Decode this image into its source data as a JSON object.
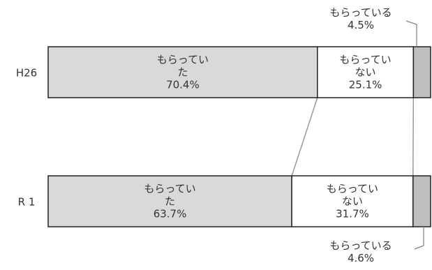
{
  "chart_data": {
    "type": "bar",
    "stacked": true,
    "normalized": true,
    "orientation": "horizontal",
    "categories": [
      "H26",
      "R 1"
    ],
    "series": [
      {
        "name": "もらってい\nた",
        "values": [
          70.4,
          63.7
        ],
        "color": "#d9d9d9"
      },
      {
        "name": "もらってい\nない",
        "values": [
          25.1,
          31.7
        ],
        "color": "#ffffff"
      },
      {
        "name": "もらっている",
        "values": [
          4.5,
          4.6
        ],
        "color": "#bfbfbf"
      }
    ],
    "data_labels": [
      [
        "もらってい\nた\n70.4%",
        "もらってい\nない\n25.1%",
        "もらっている\n4.5%"
      ],
      [
        "もらってい\nた\n63.7%",
        "もらってい\nない\n31.7%",
        "もらっている\n4.6%"
      ]
    ],
    "series_connectors": true,
    "xlim": [
      0,
      100
    ],
    "title": "",
    "xlabel": "",
    "ylabel": ""
  }
}
